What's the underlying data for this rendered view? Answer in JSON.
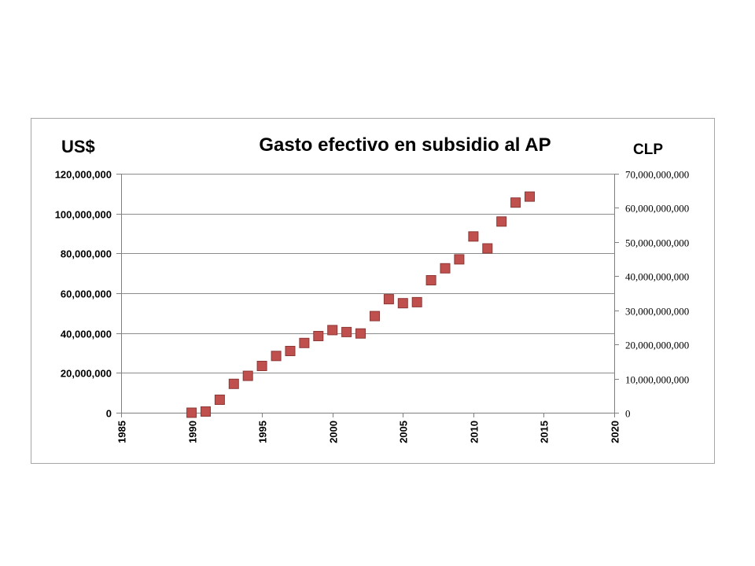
{
  "chart_data": {
    "type": "scatter",
    "title": "Gasto efectivo en subsidio al AP",
    "left_unit": "US$",
    "right_unit": "CLP",
    "x": [
      1990,
      1991,
      1992,
      1993,
      1994,
      1995,
      1996,
      1997,
      1998,
      1999,
      2000,
      2001,
      2002,
      2003,
      2004,
      2005,
      2006,
      2007,
      2008,
      2009,
      2010,
      2011,
      2012,
      2013,
      2014
    ],
    "series": [
      {
        "values": [
          0,
          600000,
          6500000,
          14500000,
          18500000,
          23500000,
          28500000,
          31000000,
          35000000,
          38500000,
          41500000,
          40500000,
          39800000,
          48500000,
          57000000,
          55000000,
          55500000,
          66500000,
          72500000,
          77000000,
          88500000,
          82500000,
          96000000,
          105500000,
          108500000
        ],
        "color": "#c0504d"
      }
    ],
    "xlim": [
      1985,
      2020
    ],
    "x_ticks": [
      "1985",
      "1990",
      "1995",
      "2000",
      "2005",
      "2010",
      "2015",
      "2020"
    ],
    "ylim": [
      0,
      120000000
    ],
    "y_ticks": [
      "0",
      "20,000,000",
      "40,000,000",
      "60,000,000",
      "80,000,000",
      "100,000,000",
      "120,000,000"
    ],
    "y2lim": [
      0,
      70000000000
    ],
    "y2_ticks": [
      "0",
      "10,000,000,000",
      "20,000,000,000",
      "30,000,000,000",
      "40,000,000,000",
      "50,000,000,000",
      "60,000,000,000",
      "70,000,000,000"
    ],
    "grid": "horizontal",
    "legend": "none"
  }
}
